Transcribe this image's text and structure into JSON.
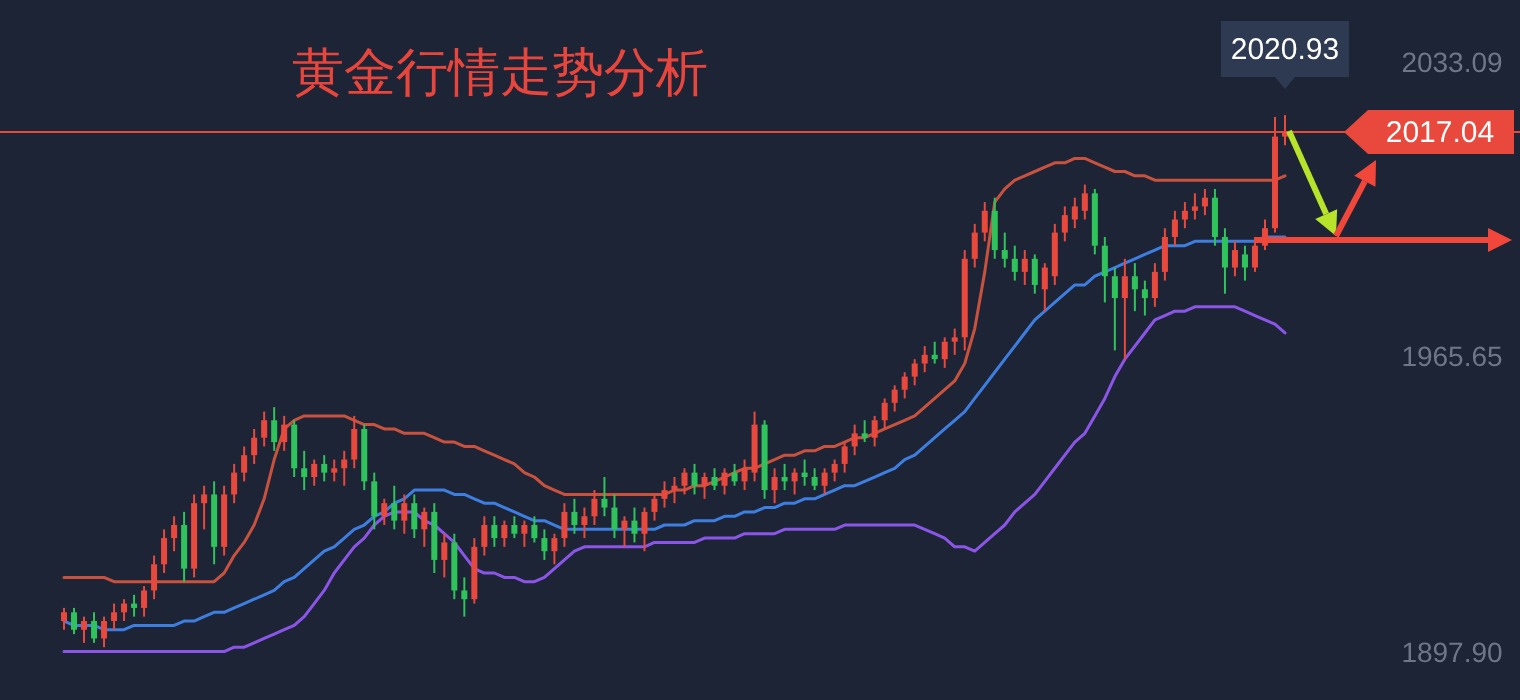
{
  "chart_data": {
    "type": "candlestick",
    "title": "黄金行情走势分析",
    "categories": [
      null,
      null,
      null,
      null,
      null,
      null,
      null,
      null,
      null,
      null,
      null,
      null,
      null,
      null,
      null,
      null,
      null,
      null,
      null,
      null,
      null,
      null,
      null,
      null,
      null,
      null,
      null,
      null,
      null,
      null,
      null,
      null,
      null,
      null,
      null,
      null,
      null,
      null,
      null,
      null,
      null,
      null,
      null,
      null,
      null,
      null,
      null,
      null,
      null,
      null,
      null,
      null,
      null,
      null,
      null,
      null,
      null,
      null,
      null,
      null,
      null,
      null,
      null,
      null,
      null,
      null,
      null,
      null,
      null,
      null,
      null,
      null,
      null,
      null,
      null,
      null,
      null,
      null,
      null,
      null,
      null,
      null,
      null,
      null,
      null,
      null,
      null,
      null,
      null,
      null,
      null,
      null,
      null,
      null,
      null,
      null,
      null,
      null,
      null,
      null,
      null,
      null,
      null,
      null,
      null,
      null,
      null,
      null,
      null,
      null,
      null,
      null,
      null,
      null,
      null,
      null,
      null,
      null,
      null,
      null,
      null,
      null,
      null
    ],
    "ylim": [
      1897.9,
      2033.09
    ],
    "yticks": [
      {
        "value": 2033.09,
        "label": "2033.09"
      },
      {
        "value": 1965.65,
        "label": "1965.65"
      },
      {
        "value": 1897.9,
        "label": "1897.90"
      }
    ],
    "tick_labels": "y",
    "grid": false,
    "series": [
      {
        "colors": [
          "#e8493c",
          "#2fc35b",
          "#e8493c",
          "#2fc35b",
          "#e8493c",
          "#e8493c",
          "#e8493c",
          "#2fc35b",
          "#e8493c",
          "#e8493c",
          "#e8493c",
          "#e8493c",
          "#2fc35b",
          "#e8493c",
          "#e8493c",
          "#2fc35b",
          "#e8493c",
          "#e8493c",
          "#e8493c",
          "#e8493c",
          "#e8493c",
          "#2fc35b",
          "#e8493c",
          "#2fc35b",
          "#2fc35b",
          "#e8493c",
          "#2fc35b",
          "#e8493c",
          "#e8493c",
          "#e8493c",
          "#2fc35b",
          "#2fc35b",
          "#e8493c",
          "#2fc35b",
          "#e8493c",
          "#2fc35b",
          "#e8493c",
          "#2fc35b",
          "#e8493c",
          "#2fc35b",
          "#2fc35b",
          "#e8493c",
          "#e8493c",
          "#2fc35b",
          "#e8493c",
          "#2fc35b",
          "#e8493c",
          "#2fc35b",
          "#2fc35b",
          "#e8493c",
          "#e8493c",
          "#2fc35b",
          "#e8493c",
          "#e8493c",
          "#2fc35b",
          "#2fc35b",
          "#e8493c",
          "#2fc35b",
          "#e8493c",
          "#e8493c",
          "#e8493c",
          "#e8493c",
          "#e8493c",
          "#2fc35b",
          "#e8493c",
          "#2fc35b",
          "#e8493c",
          "#2fc35b",
          "#e8493c",
          "#e8493c",
          "#2fc35b",
          "#e8493c",
          "#2fc35b",
          "#e8493c",
          "#2fc35b",
          "#2fc35b",
          "#e8493c",
          "#e8493c",
          "#e8493c",
          "#e8493c",
          "#2fc35b",
          "#e8493c",
          "#e8493c",
          "#e8493c",
          "#e8493c",
          "#e8493c",
          "#e8493c",
          "#2fc35b",
          "#e8493c",
          "#e8493c",
          "#e8493c",
          "#e8493c",
          "#e8493c",
          "#2fc35b",
          "#2fc35b",
          "#2fc35b",
          "#e8493c",
          "#2fc35b",
          "#e8493c",
          "#e8493c",
          "#e8493c",
          "#e8493c",
          "#e8493c",
          "#2fc35b",
          "#2fc35b",
          "#2fc35b",
          "#e8493c",
          "#2fc35b",
          "#2fc35b",
          "#e8493c",
          "#e8493c",
          "#e8493c",
          "#e8493c",
          "#e8493c",
          "#e8493c",
          "#2fc35b",
          "#2fc35b",
          "#e8493c",
          "#2fc35b",
          "#e8493c",
          "#e8493c",
          "#e8493c",
          "#e8493c"
        ],
        "ohlc": [
          [
            1905,
            1908,
            1903,
            1907
          ],
          [
            1907,
            1908,
            1902,
            1903
          ],
          [
            1903,
            1906,
            1900,
            1905
          ],
          [
            1905,
            1907,
            1900,
            1901
          ],
          [
            1901,
            1906,
            1899,
            1905
          ],
          [
            1905,
            1909,
            1903,
            1907
          ],
          [
            1907,
            1910,
            1905,
            1909
          ],
          [
            1909,
            1911,
            1906,
            1908
          ],
          [
            1908,
            1913,
            1906,
            1912
          ],
          [
            1912,
            1920,
            1910,
            1918
          ],
          [
            1918,
            1926,
            1916,
            1924
          ],
          [
            1924,
            1929,
            1921,
            1927
          ],
          [
            1927,
            1930,
            1914,
            1917
          ],
          [
            1917,
            1934,
            1915,
            1932
          ],
          [
            1932,
            1936,
            1926,
            1934
          ],
          [
            1934,
            1937,
            1918,
            1922
          ],
          [
            1922,
            1936,
            1920,
            1934
          ],
          [
            1934,
            1941,
            1932,
            1939
          ],
          [
            1939,
            1945,
            1937,
            1943
          ],
          [
            1943,
            1949,
            1941,
            1947
          ],
          [
            1947,
            1953,
            1945,
            1951
          ],
          [
            1951,
            1954,
            1944,
            1946
          ],
          [
            1946,
            1952,
            1944,
            1950
          ],
          [
            1950,
            1951,
            1938,
            1940
          ],
          [
            1940,
            1944,
            1935,
            1938
          ],
          [
            1938,
            1942,
            1936,
            1941
          ],
          [
            1941,
            1943,
            1937,
            1939
          ],
          [
            1939,
            1942,
            1937,
            1940
          ],
          [
            1940,
            1944,
            1936,
            1942
          ],
          [
            1942,
            1952,
            1940,
            1949
          ],
          [
            1949,
            1950,
            1935,
            1937
          ],
          [
            1937,
            1939,
            1926,
            1929
          ],
          [
            1929,
            1933,
            1927,
            1932
          ],
          [
            1932,
            1936,
            1926,
            1928
          ],
          [
            1928,
            1934,
            1925,
            1932
          ],
          [
            1932,
            1934,
            1924,
            1926
          ],
          [
            1926,
            1931,
            1922,
            1930
          ],
          [
            1930,
            1932,
            1916,
            1919
          ],
          [
            1919,
            1925,
            1915,
            1923
          ],
          [
            1923,
            1925,
            1910,
            1912
          ],
          [
            1912,
            1915,
            1906,
            1910
          ],
          [
            1910,
            1924,
            1909,
            1922
          ],
          [
            1922,
            1929,
            1920,
            1927
          ],
          [
            1927,
            1929,
            1922,
            1924
          ],
          [
            1924,
            1928,
            1922,
            1927
          ],
          [
            1927,
            1929,
            1924,
            1925
          ],
          [
            1925,
            1928,
            1922,
            1927
          ],
          [
            1927,
            1929,
            1923,
            1924
          ],
          [
            1924,
            1926,
            1919,
            1921
          ],
          [
            1921,
            1925,
            1918,
            1924
          ],
          [
            1924,
            1932,
            1922,
            1930
          ],
          [
            1930,
            1933,
            1925,
            1927
          ],
          [
            1927,
            1931,
            1924,
            1929
          ],
          [
            1929,
            1935,
            1927,
            1933
          ],
          [
            1933,
            1938,
            1929,
            1931
          ],
          [
            1931,
            1934,
            1924,
            1926
          ],
          [
            1926,
            1929,
            1922,
            1928
          ],
          [
            1928,
            1931,
            1923,
            1925
          ],
          [
            1925,
            1931,
            1921,
            1930
          ],
          [
            1930,
            1934,
            1928,
            1933
          ],
          [
            1933,
            1937,
            1931,
            1935
          ],
          [
            1935,
            1938,
            1932,
            1936
          ],
          [
            1936,
            1940,
            1934,
            1939
          ],
          [
            1939,
            1941,
            1934,
            1936
          ],
          [
            1936,
            1939,
            1933,
            1938
          ],
          [
            1938,
            1940,
            1935,
            1936
          ],
          [
            1936,
            1940,
            1934,
            1939
          ],
          [
            1939,
            1941,
            1936,
            1937
          ],
          [
            1937,
            1942,
            1935,
            1940
          ],
          [
            1939,
            1953,
            1937,
            1950
          ],
          [
            1950,
            1951,
            1933,
            1935
          ],
          [
            1935,
            1940,
            1932,
            1938
          ],
          [
            1938,
            1941,
            1935,
            1937
          ],
          [
            1937,
            1940,
            1934,
            1939
          ],
          [
            1939,
            1942,
            1936,
            1938
          ],
          [
            1938,
            1940,
            1935,
            1936
          ],
          [
            1936,
            1940,
            1934,
            1939
          ],
          [
            1939,
            1942,
            1937,
            1941
          ],
          [
            1941,
            1946,
            1939,
            1945
          ],
          [
            1945,
            1950,
            1943,
            1948
          ],
          [
            1948,
            1951,
            1946,
            1947
          ],
          [
            1947,
            1952,
            1945,
            1951
          ],
          [
            1951,
            1956,
            1949,
            1955
          ],
          [
            1955,
            1959,
            1953,
            1958
          ],
          [
            1958,
            1962,
            1956,
            1961
          ],
          [
            1961,
            1965,
            1959,
            1964
          ],
          [
            1964,
            1968,
            1962,
            1966
          ],
          [
            1966,
            1969,
            1964,
            1965
          ],
          [
            1965,
            1970,
            1963,
            1969
          ],
          [
            1969,
            1972,
            1966,
            1970
          ],
          [
            1970,
            1990,
            1967,
            1988
          ],
          [
            1988,
            1996,
            1986,
            1994
          ],
          [
            1994,
            2001,
            1992,
            1999
          ],
          [
            1999,
            2002,
            1988,
            1990
          ],
          [
            1990,
            1994,
            1986,
            1988
          ],
          [
            1988,
            1991,
            1983,
            1985
          ],
          [
            1985,
            1990,
            1982,
            1988
          ],
          [
            1988,
            1989,
            1980,
            1982
          ],
          [
            1981,
            1987,
            1976,
            1986
          ],
          [
            1984,
            1996,
            1982,
            1994
          ],
          [
            1994,
            2000,
            1992,
            1998
          ],
          [
            1997,
            2002,
            1995,
            2000
          ],
          [
            1999,
            2005,
            1997,
            2003
          ],
          [
            2003,
            2004,
            1989,
            1991
          ],
          [
            1991,
            1993,
            1978,
            1984
          ],
          [
            1984,
            1986,
            1967,
            1979
          ],
          [
            1979,
            1988,
            1965,
            1984
          ],
          [
            1984,
            1987,
            1976,
            1981
          ],
          [
            1981,
            1983,
            1975,
            1979
          ],
          [
            1979,
            1987,
            1977,
            1985
          ],
          [
            1985,
            1995,
            1983,
            1993
          ],
          [
            1993,
            1999,
            1991,
            1997
          ],
          [
            1997,
            2001,
            1995,
            1999
          ],
          [
            1999,
            2003,
            1997,
            2000
          ],
          [
            2000,
            2004,
            1998,
            2002
          ],
          [
            2002,
            2004,
            1991,
            1993
          ],
          [
            1993,
            1995,
            1980,
            1986
          ],
          [
            1986,
            1992,
            1984,
            1990
          ],
          [
            1989,
            1991,
            1983,
            1986
          ],
          [
            1986,
            1993,
            1985,
            1991
          ],
          [
            1991,
            1997,
            1990,
            1995
          ],
          [
            1995,
            2020.5,
            1994,
            2016
          ],
          [
            2016,
            2020.93,
            2014,
            2017.04
          ]
        ]
      },
      {
        "type": "line",
        "color": "#c8523e",
        "values": [
          1915,
          1915,
          1915,
          1915,
          1915,
          1914,
          1914,
          1914,
          1914,
          1914,
          1914,
          1914,
          1914,
          1914,
          1914,
          1914,
          1916,
          1920,
          1923,
          1927,
          1933,
          1942,
          1949,
          1951,
          1952,
          1952,
          1952,
          1952,
          1952,
          1951,
          1950,
          1950,
          1949,
          1949,
          1948,
          1948,
          1948,
          1947,
          1946,
          1946,
          1945,
          1945,
          1944,
          1943,
          1942,
          1941,
          1939,
          1938,
          1936,
          1935,
          1934,
          1934,
          1934,
          1934,
          1934,
          1934,
          1934,
          1934,
          1934,
          1934,
          1934,
          1935,
          1935,
          1936,
          1936,
          1937,
          1938,
          1939,
          1940,
          1940,
          1941,
          1942,
          1943,
          1943,
          1944,
          1944,
          1945,
          1945,
          1946,
          1947,
          1947,
          1948,
          1949,
          1950,
          1951,
          1952,
          1954,
          1956,
          1958,
          1960,
          1964,
          1972,
          1985,
          2001,
          2004,
          2006,
          2007,
          2008,
          2009,
          2010,
          2010,
          2011,
          2011,
          2010,
          2009,
          2008,
          2008,
          2007,
          2007,
          2006,
          2006,
          2006,
          2006,
          2006,
          2006,
          2006,
          2006,
          2006,
          2006,
          2006,
          2006,
          2006,
          2007
        ]
      },
      {
        "type": "line",
        "color": "#3d7ee0",
        "values": [
          1905,
          1904,
          1904,
          1904,
          1903,
          1903,
          1903,
          1904,
          1904,
          1904,
          1904,
          1904,
          1905,
          1905,
          1906,
          1907,
          1907,
          1908,
          1909,
          1910,
          1911,
          1912,
          1914,
          1915,
          1917,
          1919,
          1921,
          1922,
          1924,
          1926,
          1927,
          1929,
          1930,
          1932,
          1933,
          1935,
          1935,
          1935,
          1935,
          1934,
          1934,
          1933,
          1932,
          1932,
          1931,
          1930,
          1929,
          1928,
          1928,
          1927,
          1926,
          1926,
          1926,
          1926,
          1926,
          1926,
          1926,
          1926,
          1926,
          1926,
          1927,
          1927,
          1927,
          1928,
          1928,
          1928,
          1929,
          1929,
          1930,
          1930,
          1931,
          1931,
          1932,
          1932,
          1933,
          1933,
          1934,
          1935,
          1936,
          1936,
          1937,
          1938,
          1939,
          1940,
          1942,
          1943,
          1945,
          1947,
          1949,
          1951,
          1953,
          1956,
          1959,
          1962,
          1965,
          1968,
          1971,
          1974,
          1976,
          1978,
          1980,
          1982,
          1982,
          1984,
          1985,
          1986,
          1987,
          1988,
          1989,
          1990,
          1991,
          1991,
          1991,
          1992,
          1992,
          1992,
          1992,
          1992,
          1992,
          1992,
          1993,
          1993,
          1993
        ]
      },
      {
        "type": "line",
        "color": "#8b55e8",
        "values": [
          1898,
          1898,
          1898,
          1898,
          1898,
          1898,
          1898,
          1898,
          1898,
          1898,
          1898,
          1898,
          1898,
          1898,
          1898,
          1898,
          1898,
          1899,
          1899,
          1900,
          1901,
          1902,
          1903,
          1904,
          1906,
          1909,
          1912,
          1916,
          1919,
          1922,
          1924,
          1927,
          1929,
          1930,
          1930,
          1930,
          1928,
          1927,
          1925,
          1923,
          1920,
          1917,
          1916,
          1916,
          1915,
          1915,
          1914,
          1914,
          1915,
          1917,
          1919,
          1921,
          1922,
          1922,
          1922,
          1922,
          1922,
          1922,
          1922,
          1923,
          1923,
          1923,
          1923,
          1923,
          1924,
          1924,
          1924,
          1924,
          1925,
          1925,
          1925,
          1925,
          1926,
          1926,
          1926,
          1926,
          1926,
          1926,
          1927,
          1927,
          1927,
          1927,
          1927,
          1927,
          1927,
          1927,
          1926,
          1925,
          1924,
          1922,
          1922,
          1921,
          1923,
          1925,
          1927,
          1930,
          1932,
          1934,
          1937,
          1940,
          1943,
          1946,
          1948,
          1952,
          1956,
          1961,
          1965,
          1968,
          1971,
          1974,
          1975,
          1976,
          1976,
          1977,
          1977,
          1977,
          1977,
          1977,
          1976,
          1975,
          1974,
          1973,
          1971
        ]
      }
    ],
    "ref_lines": [
      {
        "axis": "y",
        "value": 2017.04,
        "label": "2017.04",
        "color": "#e8493c"
      }
    ],
    "annotations": [
      {
        "text": "2020.93",
        "y": 2020.93
      }
    ]
  }
}
